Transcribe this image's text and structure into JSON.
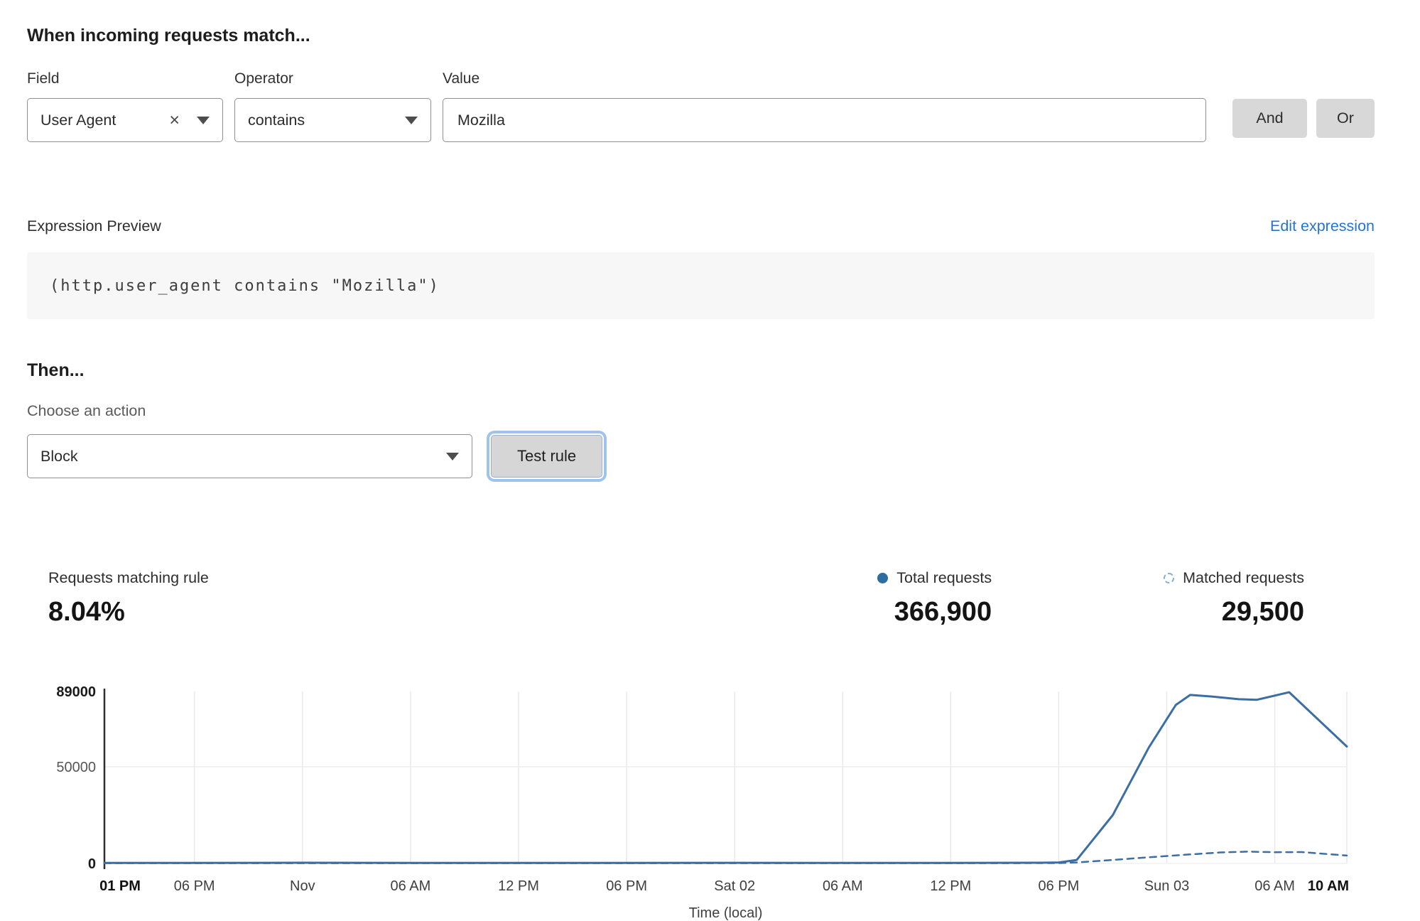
{
  "colors": {
    "link": "#2574d4",
    "chart_line": "#3b6ea5",
    "legend_dot": "#2d6d9f",
    "legend_dashed_ring": "#84aed6"
  },
  "rule_builder": {
    "heading": "When incoming requests match...",
    "field": {
      "label": "Field",
      "value": "User Agent"
    },
    "operator": {
      "label": "Operator",
      "value": "contains"
    },
    "value": {
      "label": "Value",
      "value": "Mozilla"
    },
    "and_label": "And",
    "or_label": "Or"
  },
  "expression": {
    "label": "Expression Preview",
    "edit_link": "Edit expression",
    "code": "(http.user_agent contains \"Mozilla\")"
  },
  "action": {
    "heading": "Then...",
    "choose_label": "Choose an action",
    "selected": "Block",
    "test_button": "Test rule"
  },
  "stats": {
    "matching_label": "Requests matching rule",
    "matching_value": "8.04%",
    "total_label": "Total requests",
    "total_value": "366,900",
    "matched_label": "Matched requests",
    "matched_value": "29,500"
  },
  "chart_data": {
    "type": "line",
    "title": "",
    "xlabel": "Time (local)",
    "ylabel": "",
    "ylim": [
      0,
      89000
    ],
    "yticks": [
      0,
      50000,
      89000
    ],
    "xlim": [
      0,
      69
    ],
    "x_unit": "hours from first tick (01 PM)",
    "grid": "vertical at each x tick, horizontal at 50000",
    "legend_position": "top-right (in stats row)",
    "xticks": [
      {
        "h": 0,
        "label": "01 PM",
        "bold": true
      },
      {
        "h": 5,
        "label": "06 PM"
      },
      {
        "h": 11,
        "label": "Nov"
      },
      {
        "h": 17,
        "label": "06 AM"
      },
      {
        "h": 23,
        "label": "12 PM"
      },
      {
        "h": 29,
        "label": "06 PM"
      },
      {
        "h": 35,
        "label": "Sat 02"
      },
      {
        "h": 41,
        "label": "06 AM"
      },
      {
        "h": 47,
        "label": "12 PM"
      },
      {
        "h": 53,
        "label": "06 PM"
      },
      {
        "h": 59,
        "label": "Sun 03"
      },
      {
        "h": 65,
        "label": "06 AM"
      },
      {
        "h": 69,
        "label": "10 AM",
        "bold": true
      }
    ],
    "series": [
      {
        "name": "Total requests",
        "style": "solid",
        "color": "#3b6ea5",
        "points": [
          [
            0,
            300
          ],
          [
            5,
            250
          ],
          [
            11,
            350
          ],
          [
            17,
            250
          ],
          [
            23,
            300
          ],
          [
            29,
            280
          ],
          [
            35,
            320
          ],
          [
            41,
            260
          ],
          [
            47,
            300
          ],
          [
            52,
            350
          ],
          [
            53,
            500
          ],
          [
            54,
            1800
          ],
          [
            56,
            25000
          ],
          [
            58,
            60000
          ],
          [
            59.5,
            82000
          ],
          [
            60.3,
            87200
          ],
          [
            61.5,
            86400
          ],
          [
            63,
            85000
          ],
          [
            64,
            84700
          ],
          [
            65.8,
            88600
          ],
          [
            69,
            60500
          ]
        ]
      },
      {
        "name": "Matched requests",
        "style": "dashed",
        "color": "#3b6ea5",
        "points": [
          [
            0,
            150
          ],
          [
            10,
            150
          ],
          [
            20,
            150
          ],
          [
            30,
            150
          ],
          [
            40,
            150
          ],
          [
            50,
            150
          ],
          [
            53,
            200
          ],
          [
            54,
            500
          ],
          [
            56,
            1800
          ],
          [
            58,
            3200
          ],
          [
            60,
            4500
          ],
          [
            62,
            5700
          ],
          [
            63.5,
            6100
          ],
          [
            65,
            5800
          ],
          [
            66.5,
            5900
          ],
          [
            69,
            4100
          ]
        ]
      }
    ]
  }
}
